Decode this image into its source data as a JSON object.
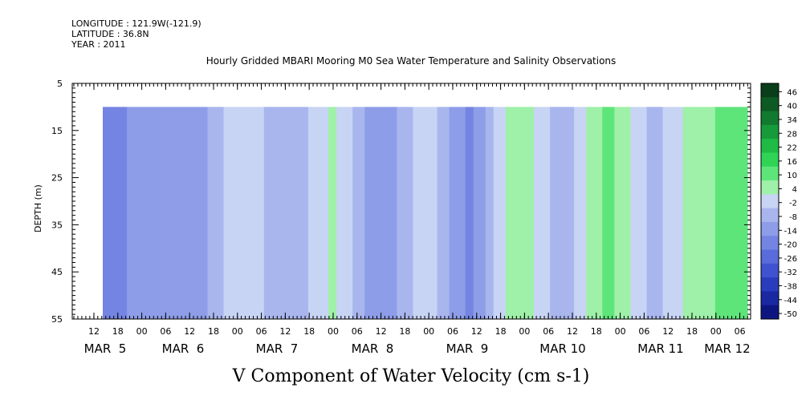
{
  "header": {
    "longitude": "LONGITUDE : 121.9W(-121.9)",
    "latitude": "LATITUDE : 36.8N",
    "year": "YEAR : 2011"
  },
  "chart_data": {
    "type": "heatmap",
    "title": "Hourly Gridded MBARI Mooring M0 Sea Water Temperature and Salinity Observations",
    "variable_title": "V Component of Water Velocity (cm s-1)",
    "ylabel": "DEPTH (m)",
    "ylim": [
      55,
      5
    ],
    "y_ticks": [
      5,
      15,
      25,
      35,
      45,
      55
    ],
    "data_depth_range": [
      10,
      55
    ],
    "x_hour_ticks": [
      "12",
      "18",
      "00",
      "06",
      "12",
      "18",
      "00",
      "06",
      "12",
      "18",
      "00",
      "06",
      "12",
      "18",
      "00",
      "06",
      "12",
      "18",
      "00",
      "06",
      "12",
      "18",
      "00",
      "06",
      "12",
      "18",
      "00",
      "06"
    ],
    "x_day_labels": [
      "MAR  5",
      "MAR  6",
      "MAR  7",
      "MAR  8",
      "MAR  9",
      "MAR 10",
      "MAR 11",
      "MAR 12"
    ],
    "colorbar_levels": [
      46,
      40,
      34,
      28,
      22,
      16,
      10,
      4,
      -2,
      -8,
      -14,
      -20,
      -26,
      -32,
      -38,
      -44,
      -50
    ],
    "colorbar_colors": [
      "#0a3d1a",
      "#0d5a24",
      "#117a2f",
      "#179b3a",
      "#1fbb46",
      "#2fd455",
      "#5ee57a",
      "#9ff0a8",
      "#c8d4f4",
      "#a9b6ee",
      "#8e9de8",
      "#7484e2",
      "#5a6bdb",
      "#3f52cf",
      "#2a3cbe",
      "#1a28a2",
      "#0d1680"
    ],
    "series": [
      {
        "x_hour": 0,
        "v": -18
      },
      {
        "x_hour": 12,
        "v": -10
      },
      {
        "x_hour": 24,
        "v": -12
      },
      {
        "x_hour": 36,
        "v": 4
      },
      {
        "x_hour": 48,
        "v": -8
      },
      {
        "x_hour": 60,
        "v": 6
      },
      {
        "x_hour": 72,
        "v": -14
      },
      {
        "x_hour": 84,
        "v": 2
      },
      {
        "x_hour": 96,
        "v": -16
      },
      {
        "x_hour": 108,
        "v": 10
      },
      {
        "x_hour": 120,
        "v": -6
      },
      {
        "x_hour": 132,
        "v": 12
      },
      {
        "x_hour": 144,
        "v": -4
      },
      {
        "x_hour": 156,
        "v": 8
      },
      {
        "x_hour": 168,
        "v": 14
      }
    ]
  }
}
